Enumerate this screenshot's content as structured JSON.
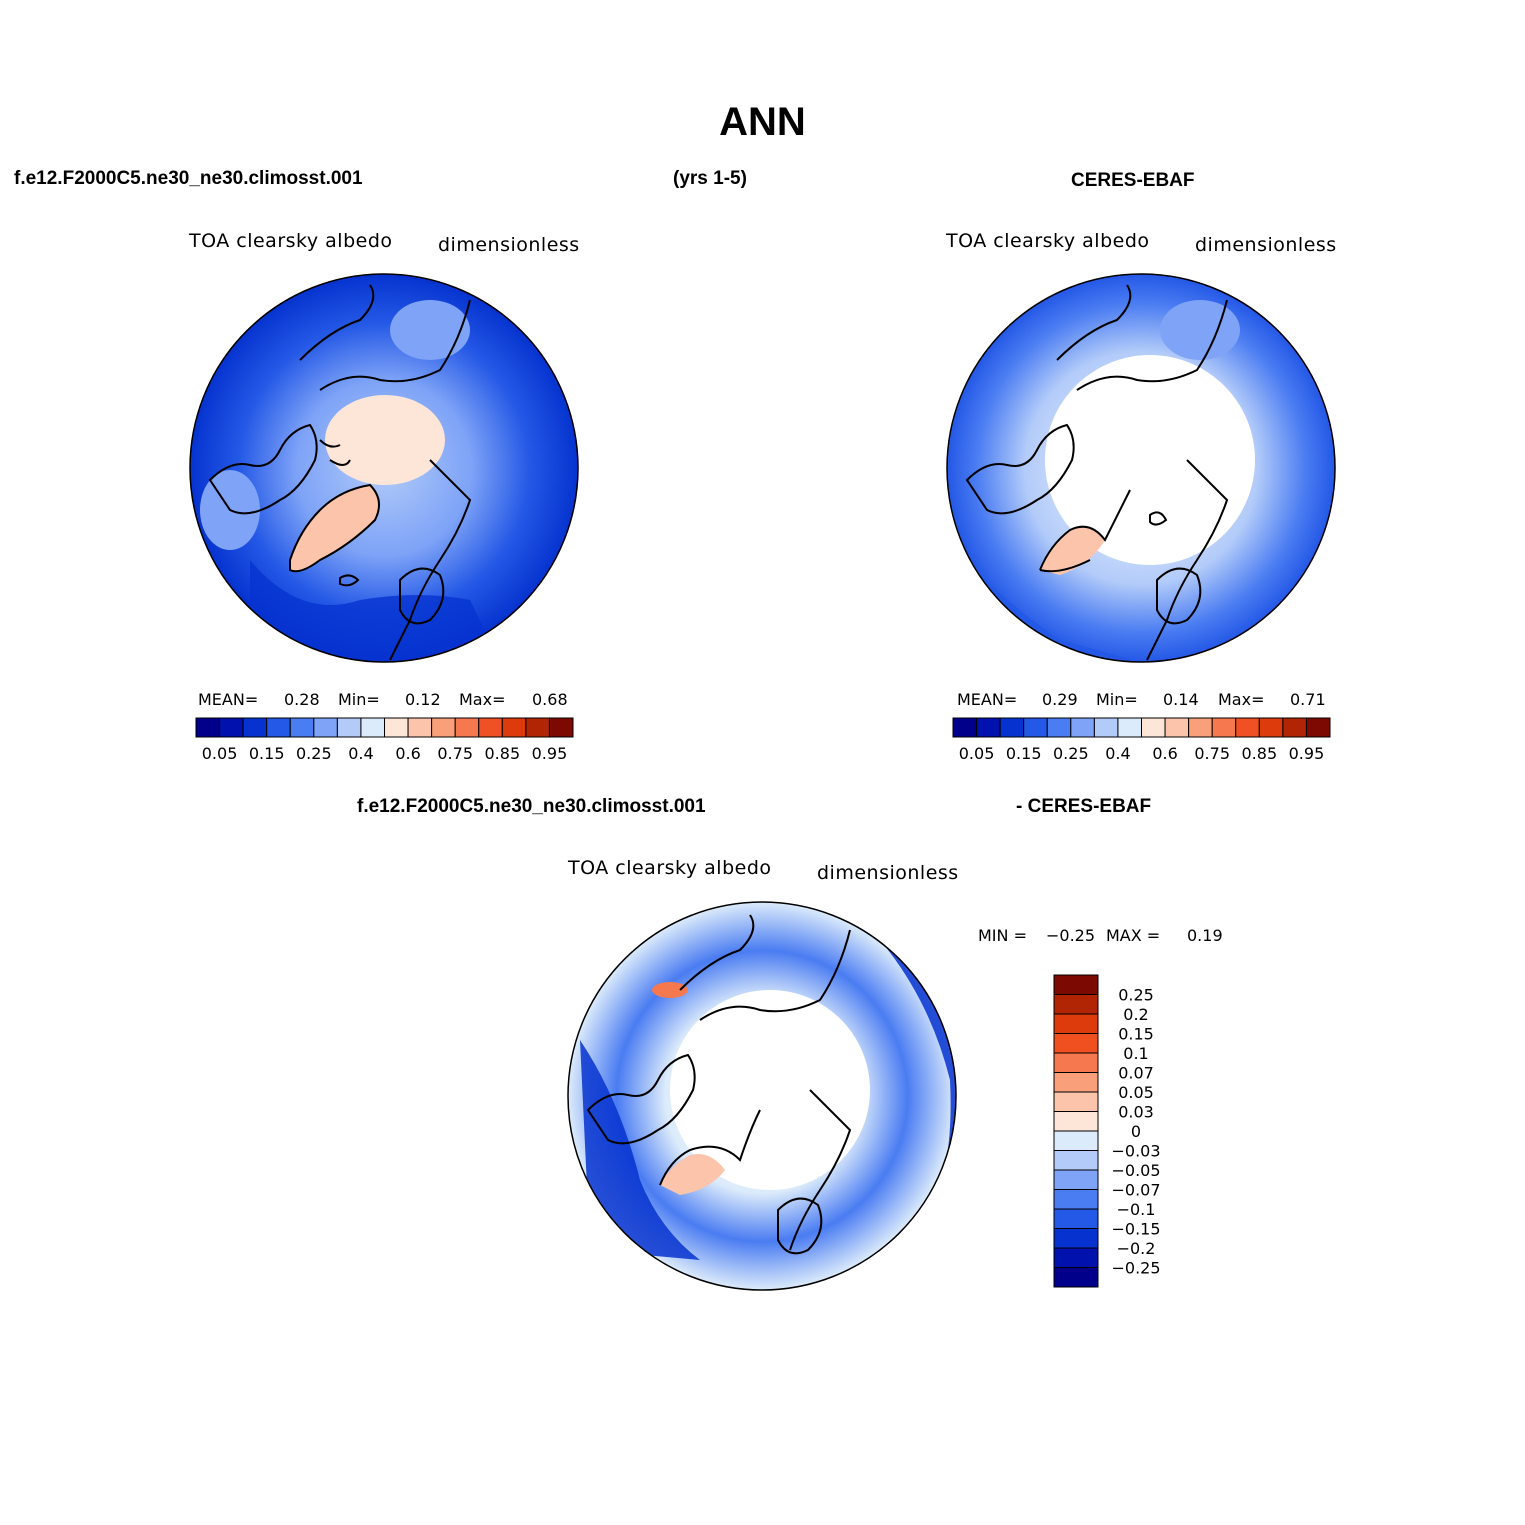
{
  "title": "ANN",
  "header": {
    "case_name": "f.e12.F2000C5.ne30_ne30.climosst.001",
    "years": "(yrs 1-5)",
    "obs_name": "CERES-EBAF"
  },
  "diff_header": {
    "case_name": "f.e12.F2000C5.ne30_ne30.climosst.001",
    "obs_name": "- CERES-EBAF"
  },
  "panels": [
    {
      "variable": "TOA clearsky albedo",
      "units": "dimensionless",
      "stats": {
        "mean_label": "MEAN=",
        "mean": "0.28",
        "min_label": "Min=",
        "min": "0.12",
        "max_label": "Max=",
        "max": "0.68"
      }
    },
    {
      "variable": "TOA clearsky albedo",
      "units": "dimensionless",
      "stats": {
        "mean_label": "MEAN=",
        "mean": "0.29",
        "min_label": "Min=",
        "min": "0.14",
        "max_label": "Max=",
        "max": "0.71"
      }
    },
    {
      "variable": "TOA clearsky albedo",
      "units": "dimensionless",
      "stats": {
        "min_label": "MIN =",
        "min": "−0.25",
        "max_label": "MAX =",
        "max": "0.19"
      }
    }
  ],
  "colorbar_abs": {
    "colors": [
      "#00008b",
      "#0011ad",
      "#0633cf",
      "#2458e6",
      "#4a7cf2",
      "#7ea3f7",
      "#b2cbf9",
      "#dcebfb",
      "#fde6d8",
      "#fcc4ab",
      "#f9a07b",
      "#f6784f",
      "#ef5125",
      "#de3b0c",
      "#b12505",
      "#7c0a03"
    ],
    "tick_labels": [
      "0.05",
      "0.15",
      "0.25",
      "0.4",
      "0.6",
      "0.75",
      "0.85",
      "0.95"
    ]
  },
  "colorbar_diff": {
    "colors_top_to_bottom": [
      "#7c0a03",
      "#b12505",
      "#de3b0c",
      "#f05020",
      "#f6784f",
      "#f9a07b",
      "#fcc4ab",
      "#fde6d8",
      "#dcebfb",
      "#b2cbf9",
      "#7ea3f7",
      "#4a7cf2",
      "#2458e6",
      "#0633cf",
      "#0011ad",
      "#00008b"
    ],
    "tick_labels": [
      "0.25",
      "0.2",
      "0.15",
      "0.1",
      "0.07",
      "0.05",
      "0.03",
      "0",
      "−0.03",
      "−0.05",
      "−0.07",
      "−0.1",
      "−0.15",
      "−0.2",
      "−0.25"
    ]
  }
}
